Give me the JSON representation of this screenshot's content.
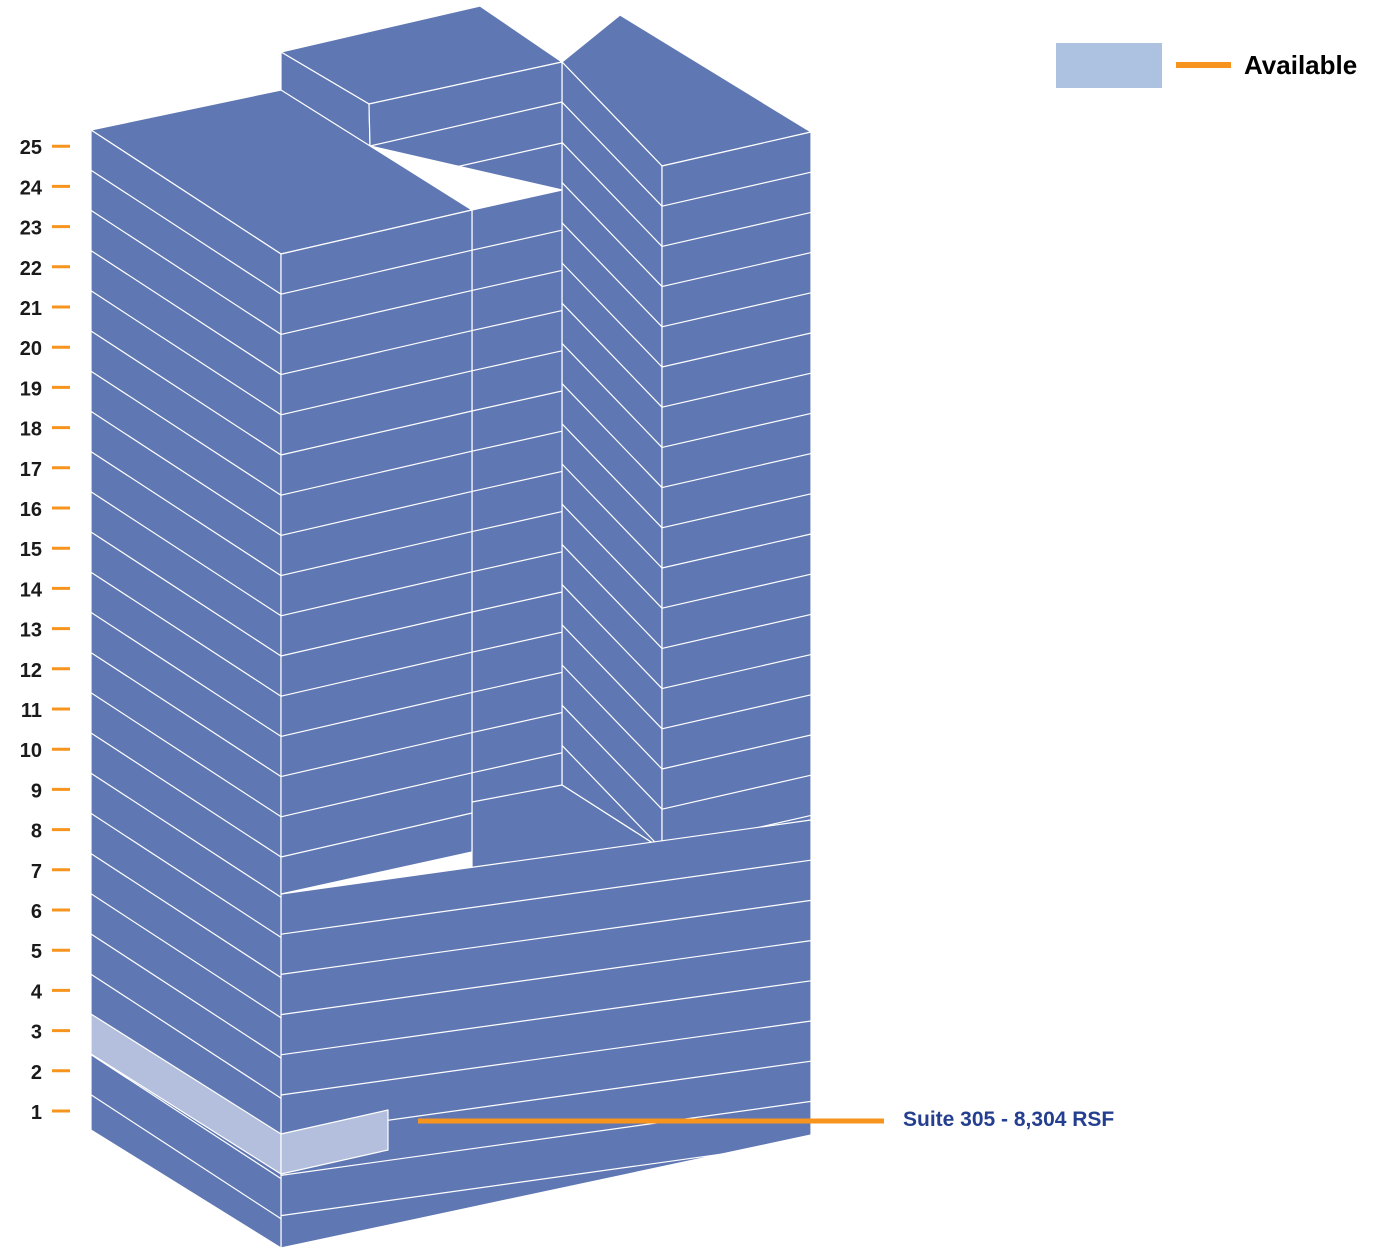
{
  "legend": {
    "label": "Available",
    "swatch_color": "#adc2e0",
    "line_color": "#f7941d"
  },
  "floors": [
    "1",
    "2",
    "3",
    "4",
    "5",
    "6",
    "7",
    "8",
    "9",
    "10",
    "11",
    "12",
    "13",
    "14",
    "15",
    "16",
    "17",
    "18",
    "19",
    "20",
    "21",
    "22",
    "23",
    "24",
    "25"
  ],
  "callout": {
    "text": "Suite 305 - 8,304 RSF",
    "floor": 3
  },
  "colors": {
    "building": "#5f77b3",
    "available": "#b3bfdc",
    "edge": "#ffffff",
    "tick": "#f7941d",
    "callout_text": "#243f8f",
    "floor_label": "#1a1a1a"
  }
}
